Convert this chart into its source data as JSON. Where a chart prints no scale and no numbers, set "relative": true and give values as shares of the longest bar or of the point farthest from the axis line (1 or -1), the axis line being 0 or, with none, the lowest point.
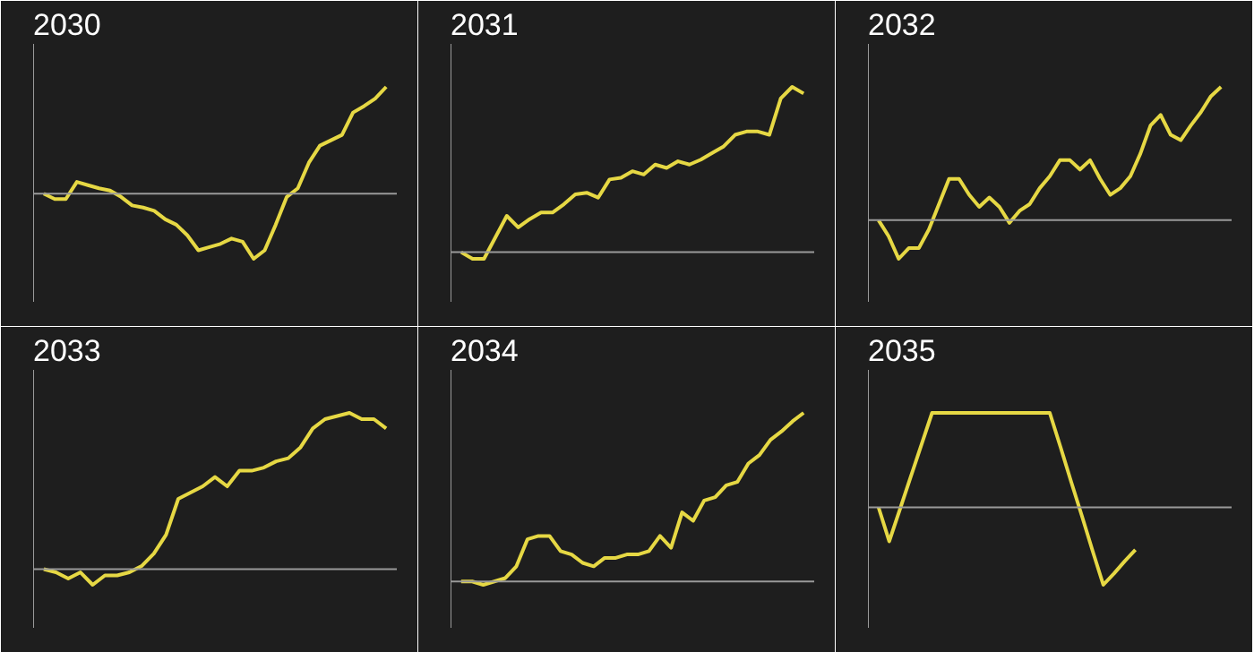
{
  "chart_data": [
    {
      "type": "line",
      "title": "2030",
      "relative": true,
      "color": "#e6d844",
      "categories": [
        null,
        null,
        null,
        null,
        null,
        null,
        null,
        null,
        null,
        null,
        null,
        null,
        null,
        null,
        null,
        null,
        null,
        null,
        null,
        null,
        null,
        null,
        null,
        null,
        null,
        null,
        null,
        null,
        null,
        null,
        null,
        null
      ],
      "values": [
        0,
        -0.05,
        -0.05,
        0.11,
        0.08,
        0.05,
        0.03,
        -0.03,
        -0.11,
        -0.13,
        -0.16,
        -0.24,
        -0.29,
        -0.39,
        -0.53,
        -0.5,
        -0.47,
        -0.42,
        -0.45,
        -0.61,
        -0.53,
        -0.29,
        -0.03,
        0.05,
        0.29,
        0.45,
        0.5,
        0.55,
        0.76,
        0.82,
        0.89,
        1
      ]
    },
    {
      "type": "line",
      "title": "2031",
      "relative": true,
      "color": "#e6d844",
      "categories": [
        null,
        null,
        null,
        null,
        null,
        null,
        null,
        null,
        null,
        null,
        null,
        null,
        null,
        null,
        null,
        null,
        null,
        null,
        null,
        null,
        null,
        null,
        null,
        null,
        null,
        null,
        null,
        null,
        null,
        null,
        null
      ],
      "values": [
        0,
        -0.04,
        -0.04,
        0.09,
        0.22,
        0.15,
        0.2,
        0.24,
        0.24,
        0.29,
        0.35,
        0.36,
        0.33,
        0.44,
        0.45,
        0.49,
        0.47,
        0.53,
        0.51,
        0.55,
        0.53,
        0.56,
        0.6,
        0.64,
        0.71,
        0.73,
        0.73,
        0.71,
        0.93,
        1,
        0.96
      ]
    },
    {
      "type": "line",
      "title": "2032",
      "relative": true,
      "color": "#e6d844",
      "categories": [
        null,
        null,
        null,
        null,
        null,
        null,
        null,
        null,
        null,
        null,
        null,
        null,
        null,
        null,
        null,
        null,
        null,
        null,
        null,
        null,
        null,
        null,
        null,
        null,
        null,
        null,
        null,
        null,
        null,
        null,
        null,
        null,
        null,
        null,
        null
      ],
      "values": [
        0,
        -0.12,
        -0.29,
        -0.21,
        -0.21,
        -0.07,
        0.12,
        0.31,
        0.31,
        0.19,
        0.1,
        0.17,
        0.1,
        -0.02,
        0.07,
        0.12,
        0.24,
        0.33,
        0.45,
        0.45,
        0.38,
        0.45,
        0.31,
        0.19,
        0.24,
        0.33,
        0.5,
        0.71,
        0.79,
        0.64,
        0.6,
        0.71,
        0.81,
        0.93,
        1
      ]
    },
    {
      "type": "line",
      "title": "2033",
      "relative": true,
      "color": "#e6d844",
      "categories": [
        null,
        null,
        null,
        null,
        null,
        null,
        null,
        null,
        null,
        null,
        null,
        null,
        null,
        null,
        null,
        null,
        null,
        null,
        null,
        null,
        null,
        null,
        null,
        null,
        null,
        null,
        null,
        null,
        null
      ],
      "values": [
        0,
        -0.02,
        -0.06,
        -0.02,
        -0.1,
        -0.04,
        -0.04,
        -0.02,
        0.02,
        0.1,
        0.22,
        0.45,
        0.49,
        0.53,
        0.59,
        0.53,
        0.63,
        0.63,
        0.65,
        0.69,
        0.71,
        0.78,
        0.9,
        0.96,
        0.98,
        1,
        0.96,
        0.96,
        0.9
      ]
    },
    {
      "type": "line",
      "title": "2034",
      "relative": true,
      "color": "#e6d844",
      "categories": [
        null,
        null,
        null,
        null,
        null,
        null,
        null,
        null,
        null,
        null,
        null,
        null,
        null,
        null,
        null,
        null,
        null,
        null,
        null,
        null,
        null,
        null,
        null,
        null,
        null,
        null,
        null,
        null,
        null,
        null,
        null,
        null
      ],
      "values": [
        0,
        0,
        -0.02,
        0,
        0.02,
        0.09,
        0.25,
        0.27,
        0.27,
        0.18,
        0.16,
        0.11,
        0.09,
        0.14,
        0.14,
        0.16,
        0.16,
        0.18,
        0.27,
        0.2,
        0.41,
        0.36,
        0.48,
        0.5,
        0.57,
        0.59,
        0.7,
        0.75,
        0.84,
        0.89,
        0.95,
        1
      ]
    },
    {
      "type": "line",
      "title": "2035",
      "relative": true,
      "color": "#e6d844",
      "categories": [
        null,
        null,
        null,
        null,
        null,
        null,
        null,
        null,
        null,
        null,
        null,
        null,
        null,
        null,
        null,
        null,
        null,
        null,
        null,
        null,
        null,
        null,
        null,
        null,
        null,
        null,
        null,
        null,
        null,
        null,
        null,
        null,
        null
      ],
      "values": [
        0,
        -0.36,
        -0.02,
        0.32,
        0.66,
        1,
        1,
        1,
        1,
        1,
        1,
        1,
        1,
        1,
        1,
        1,
        1,
        0.64,
        0.27,
        -0.09,
        -0.46,
        -0.82,
        -0.7,
        -0.57,
        -0.45,
        null,
        null,
        null,
        null,
        null,
        null,
        null,
        null
      ]
    }
  ]
}
